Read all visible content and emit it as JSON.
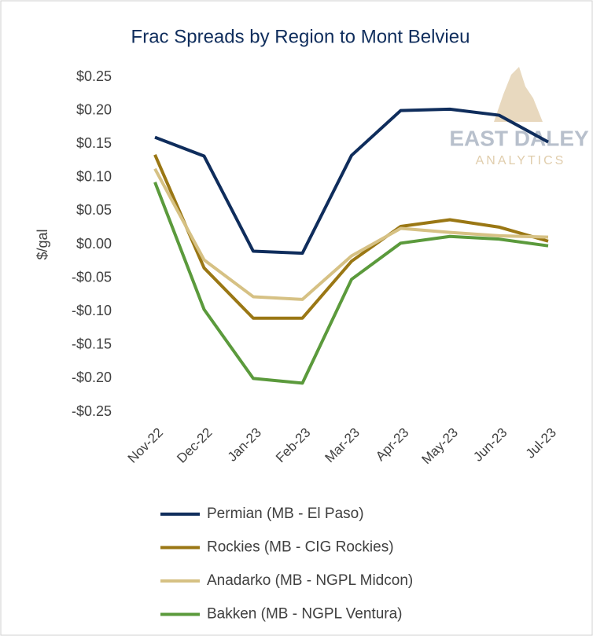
{
  "chart_data": {
    "type": "line",
    "title": "Frac Spreads by Region to Mont Belvieu",
    "y_label": "$/gal",
    "watermark": {
      "name": "EAST DALEY",
      "sub": "ANALYTICS"
    },
    "categories": [
      "Nov-22",
      "Dec-22",
      "Jan-23",
      "Feb-23",
      "Mar-23",
      "Apr-23",
      "May-23",
      "Jun-23",
      "Jul-23"
    ],
    "series": [
      {
        "name": "Permian (MB - El Paso)",
        "color": "#0f2d5c",
        "values": [
          0.16,
          0.132,
          -0.01,
          -0.013,
          0.133,
          0.2,
          0.202,
          0.193,
          0.153
        ]
      },
      {
        "name": "Rockies (MB - CIG Rockies)",
        "color": "#9a7714",
        "values": [
          0.134,
          -0.035,
          -0.11,
          -0.11,
          -0.025,
          0.027,
          0.037,
          0.026,
          0.005
        ]
      },
      {
        "name": "Anadarko (MB - NGPL Midcon)",
        "color": "#d6c184",
        "values": [
          0.113,
          -0.023,
          -0.078,
          -0.082,
          -0.017,
          0.024,
          0.018,
          0.013,
          0.011
        ]
      },
      {
        "name": "Bakken (MB - NGPL Ventura)",
        "color": "#5b9a3c",
        "values": [
          0.093,
          -0.097,
          -0.2,
          -0.207,
          -0.052,
          0.002,
          0.012,
          0.008,
          -0.002
        ]
      }
    ],
    "ylim": [
      -0.25,
      0.25
    ],
    "yticks": [
      {
        "value": 0.25,
        "label": "$0.25"
      },
      {
        "value": 0.2,
        "label": "$0.20"
      },
      {
        "value": 0.15,
        "label": "$0.15"
      },
      {
        "value": 0.1,
        "label": "$0.10"
      },
      {
        "value": 0.05,
        "label": "$0.05"
      },
      {
        "value": 0,
        "label": "$0.00"
      },
      {
        "value": -0.05,
        "label": "-$0.05"
      },
      {
        "value": -0.1,
        "label": "-$0.10"
      },
      {
        "value": -0.15,
        "label": "-$0.15"
      },
      {
        "value": -0.2,
        "label": "-$0.20"
      },
      {
        "value": -0.25,
        "label": "-$0.25"
      }
    ],
    "grid": false
  }
}
